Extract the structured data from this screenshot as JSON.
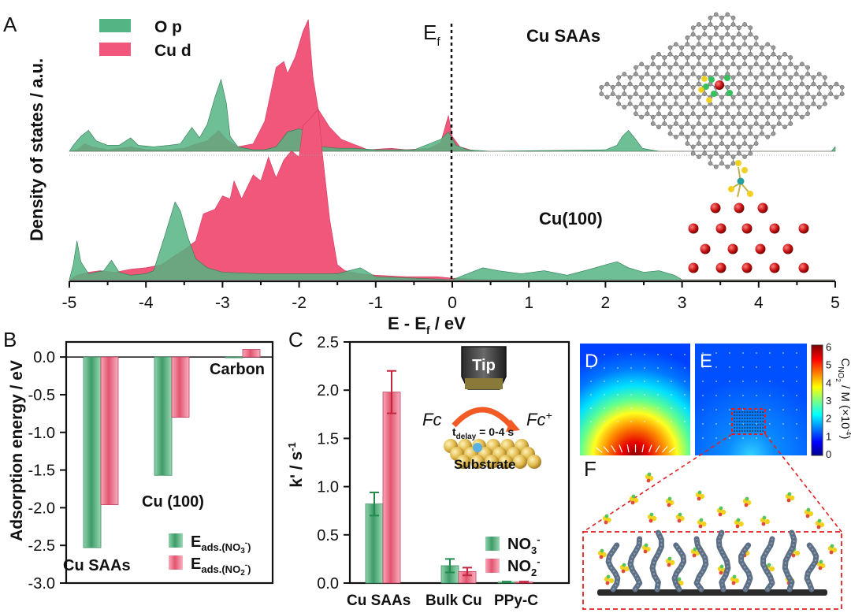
{
  "panels": {
    "A": "A",
    "B": "B",
    "C": "C",
    "D": "D",
    "E": "E",
    "F": "F"
  },
  "colors": {
    "op": "#55b483",
    "cud": "#f0577a",
    "green_dark": "#3d8f62",
    "red_dark": "#c43a5c",
    "error": "#1f8a4c",
    "error_red": "#c4263f"
  },
  "chart_data": [
    {
      "panel": "A",
      "type": "area",
      "title": "",
      "xlabel_main": "E - E",
      "xlabel_sub": "f",
      "xlabel_tail": " / eV",
      "ylabel": "Density of states / a.u.",
      "xlim": [
        -5,
        5
      ],
      "x_ticks": [
        "-5",
        "-4",
        "-3",
        "-2",
        "-1",
        "0",
        "1",
        "2",
        "3",
        "4",
        "5"
      ],
      "ef_label": "E",
      "ef_sub": "f",
      "legend": [
        {
          "name": "O p",
          "color": "#55b483"
        },
        {
          "name": "Cu d",
          "color": "#f0577a"
        }
      ],
      "systems": [
        {
          "name": "Cu SAAs",
          "series": [
            {
              "name": "Cu d",
              "points": [
                [
                  -5,
                  0
                ],
                [
                  -4.9,
                  1
                ],
                [
                  -4.8,
                  5
                ],
                [
                  -4.7,
                  3
                ],
                [
                  -4.5,
                  1
                ],
                [
                  -4.2,
                  3
                ],
                [
                  -4.0,
                  1
                ],
                [
                  -3.7,
                  1
                ],
                [
                  -3.5,
                  2
                ],
                [
                  -3.4,
                  4
                ],
                [
                  -3.2,
                  7
                ],
                [
                  -3.05,
                  14
                ],
                [
                  -2.95,
                  8
                ],
                [
                  -2.8,
                  3
                ],
                [
                  -2.6,
                  5
                ],
                [
                  -2.45,
                  20
                ],
                [
                  -2.3,
                  56
                ],
                [
                  -2.2,
                  60
                ],
                [
                  -2.15,
                  52
                ],
                [
                  -2.05,
                  63
                ],
                [
                  -1.95,
                  80
                ],
                [
                  -1.88,
                  88
                ],
                [
                  -1.82,
                  50
                ],
                [
                  -1.75,
                  28
                ],
                [
                  -1.6,
                  16
                ],
                [
                  -1.45,
                  8
                ],
                [
                  -1.3,
                  5
                ],
                [
                  -1.2,
                  3
                ],
                [
                  -1.1,
                  1
                ],
                [
                  -0.8,
                  2
                ],
                [
                  -0.6,
                  1
                ],
                [
                  -0.3,
                  2
                ],
                [
                  -0.15,
                  6
                ],
                [
                  -0.05,
                  24
                ],
                [
                  0,
                  10
                ],
                [
                  0.1,
                  3
                ],
                [
                  0.3,
                  0
                ],
                [
                  5,
                  0
                ]
              ]
            },
            {
              "name": "O p",
              "points": [
                [
                  -5,
                  0
                ],
                [
                  -4.95,
                  4
                ],
                [
                  -4.85,
                  10
                ],
                [
                  -4.75,
                  14
                ],
                [
                  -4.65,
                  7
                ],
                [
                  -4.5,
                  4
                ],
                [
                  -4.35,
                  4
                ],
                [
                  -4.2,
                  9
                ],
                [
                  -4.1,
                  4
                ],
                [
                  -3.9,
                  3
                ],
                [
                  -3.7,
                  4
                ],
                [
                  -3.55,
                  5
                ],
                [
                  -3.4,
                  16
                ],
                [
                  -3.3,
                  9
                ],
                [
                  -3.2,
                  18
                ],
                [
                  -3.1,
                  36
                ],
                [
                  -3.02,
                  48
                ],
                [
                  -2.95,
                  32
                ],
                [
                  -2.9,
                  10
                ],
                [
                  -2.8,
                  3
                ],
                [
                  -2.6,
                  1
                ],
                [
                  -2.45,
                  1
                ],
                [
                  -2.3,
                  3
                ],
                [
                  -2.15,
                  13
                ],
                [
                  -2.0,
                  15
                ],
                [
                  -1.9,
                  13
                ],
                [
                  -1.8,
                  7
                ],
                [
                  -1.7,
                  3
                ],
                [
                  -1.5,
                  2
                ],
                [
                  -1.3,
                  2
                ],
                [
                  -1.0,
                  1
                ],
                [
                  -0.5,
                  1
                ],
                [
                  -0.15,
                  8
                ],
                [
                  -0.05,
                  13
                ],
                [
                  0.05,
                  4
                ],
                [
                  0.2,
                  1
                ],
                [
                  0.5,
                  0
                ],
                [
                  2.0,
                  1
                ],
                [
                  2.15,
                  4
                ],
                [
                  2.22,
                  10
                ],
                [
                  2.3,
                  14
                ],
                [
                  2.38,
                  9
                ],
                [
                  2.48,
                  2
                ],
                [
                  2.7,
                  0
                ],
                [
                  4.95,
                  0
                ],
                [
                  5.0,
                  3
                ]
              ]
            }
          ]
        },
        {
          "name": "Cu(100)",
          "series": [
            {
              "name": "Cu d",
              "points": [
                [
                  -5,
                  0
                ],
                [
                  -4.9,
                  3
                ],
                [
                  -4.75,
                  5
                ],
                [
                  -4.6,
                  6
                ],
                [
                  -4.4,
                  5
                ],
                [
                  -4.2,
                  7
                ],
                [
                  -4.0,
                  8
                ],
                [
                  -3.8,
                  10
                ],
                [
                  -3.6,
                  17
                ],
                [
                  -3.5,
                  20
                ],
                [
                  -3.35,
                  26
                ],
                [
                  -3.25,
                  44
                ],
                [
                  -3.1,
                  47
                ],
                [
                  -3.0,
                  56
                ],
                [
                  -2.9,
                  54
                ],
                [
                  -2.85,
                  66
                ],
                [
                  -2.75,
                  54
                ],
                [
                  -2.6,
                  70
                ],
                [
                  -2.5,
                  66
                ],
                [
                  -2.4,
                  82
                ],
                [
                  -2.3,
                  68
                ],
                [
                  -2.2,
                  80
                ],
                [
                  -2.1,
                  86
                ],
                [
                  -2.0,
                  82
                ],
                [
                  -1.95,
                  103
                ],
                [
                  -1.85,
                  108
                ],
                [
                  -1.75,
                  114
                ],
                [
                  -1.7,
                  86
                ],
                [
                  -1.6,
                  40
                ],
                [
                  -1.5,
                  10
                ],
                [
                  -1.4,
                  6
                ],
                [
                  -1.3,
                  5
                ],
                [
                  -1.2,
                  4
                ],
                [
                  -1.0,
                  3
                ],
                [
                  -0.6,
                  2
                ],
                [
                  -0.2,
                  2
                ],
                [
                  0,
                  1
                ],
                [
                  0.5,
                  0
                ],
                [
                  5,
                  0
                ]
              ]
            },
            {
              "name": "O p",
              "points": [
                [
                  -5,
                  0
                ],
                [
                  -4.95,
                  10
                ],
                [
                  -4.9,
                  26
                ],
                [
                  -4.85,
                  12
                ],
                [
                  -4.75,
                  4
                ],
                [
                  -4.55,
                  6
                ],
                [
                  -4.45,
                  13
                ],
                [
                  -4.35,
                  5
                ],
                [
                  -4.2,
                  3
                ],
                [
                  -4.0,
                  4
                ],
                [
                  -3.9,
                  6
                ],
                [
                  -3.75,
                  30
                ],
                [
                  -3.62,
                  52
                ],
                [
                  -3.55,
                  46
                ],
                [
                  -3.45,
                  28
                ],
                [
                  -3.35,
                  14
                ],
                [
                  -3.2,
                  8
                ],
                [
                  -3.0,
                  5
                ],
                [
                  -2.5,
                  4
                ],
                [
                  -2.0,
                  4
                ],
                [
                  -1.5,
                  4
                ],
                [
                  -1.2,
                  8
                ],
                [
                  -1.0,
                  2
                ],
                [
                  -0.5,
                  1
                ],
                [
                  0,
                  0
                ],
                [
                  0.2,
                  4
                ],
                [
                  0.4,
                  8
                ],
                [
                  0.6,
                  6
                ],
                [
                  0.9,
                  4
                ],
                [
                  1.2,
                  6
                ],
                [
                  1.5,
                  3
                ],
                [
                  1.8,
                  7
                ],
                [
                  2.0,
                  10
                ],
                [
                  2.15,
                  12
                ],
                [
                  2.3,
                  8
                ],
                [
                  2.5,
                  5
                ],
                [
                  2.7,
                  6
                ],
                [
                  2.9,
                  3
                ],
                [
                  3.0,
                  0
                ],
                [
                  5.0,
                  0
                ]
              ]
            }
          ]
        }
      ]
    },
    {
      "panel": "B",
      "type": "bar",
      "ylabel": "Adsorption energy / eV",
      "ylim": [
        -3.0,
        0.2
      ],
      "y_ticks": [
        "0.0",
        "-0.5",
        "-1.0",
        "-1.5",
        "-2.0",
        "-2.5",
        "-3.0"
      ],
      "categories": [
        "Cu SAAs",
        "Cu (100)",
        "Carbon"
      ],
      "series": [
        {
          "name": "E",
          "sub": "ads.(NO",
          "sup": "3",
          "sub_tail": "-",
          "values": [
            -2.53,
            -1.57,
            -0.01
          ]
        },
        {
          "name": "E",
          "sub": "ads.(NO",
          "sup": "2",
          "sub_tail": "-",
          "values": [
            -1.96,
            -0.8,
            0.1
          ]
        }
      ],
      "legend": [
        {
          "main": "E",
          "sub": "ads.(NO",
          "subsub": "3",
          "sup": "-",
          "close": ")"
        },
        {
          "main": "E",
          "sub": "ads.(NO",
          "subsub": "2",
          "sup": "-",
          "close": ")"
        }
      ]
    },
    {
      "panel": "C",
      "type": "bar",
      "ylabel_main": "k' / s",
      "ylabel_sup": "-1",
      "ylim": [
        0,
        2.5
      ],
      "y_ticks": [
        "0.0",
        "0.5",
        "1.0",
        "1.5",
        "2.0",
        "2.5"
      ],
      "categories": [
        "Cu SAAs",
        "Bulk Cu",
        "PPy-C"
      ],
      "series": [
        {
          "name": "NO3-",
          "values": [
            0.82,
            0.18,
            0.01
          ],
          "errors": [
            0.12,
            0.07,
            0.005
          ]
        },
        {
          "name": "NO2-",
          "values": [
            1.98,
            0.12,
            0.01
          ],
          "errors": [
            0.22,
            0.04,
            0.005
          ]
        }
      ],
      "legend": [
        {
          "main": "NO",
          "sub": "3",
          "sup": "-"
        },
        {
          "main": "NO",
          "sub": "2",
          "sup": "-"
        }
      ],
      "inset": {
        "tip": "Tip",
        "fc": "Fc",
        "fc_plus": "Fc",
        "fc_plus_sup": "+",
        "tdelay_main": "t",
        "tdelay_sub": "delay",
        "tdelay_tail": " = 0-4 s",
        "substrate": "Substrate"
      }
    },
    {
      "panel": "D-E",
      "type": "heatmap",
      "colorbar_label_main": "C",
      "colorbar_label_sub": "NO",
      "colorbar_label_subsub": "2",
      "colorbar_label_tail": " / M (×10",
      "colorbar_label_sup": "-4",
      "colorbar_label_close": ")",
      "zlim": [
        0,
        6
      ],
      "z_ticks": [
        "6",
        "5",
        "4",
        "3",
        "2",
        "1",
        "0"
      ]
    }
  ]
}
